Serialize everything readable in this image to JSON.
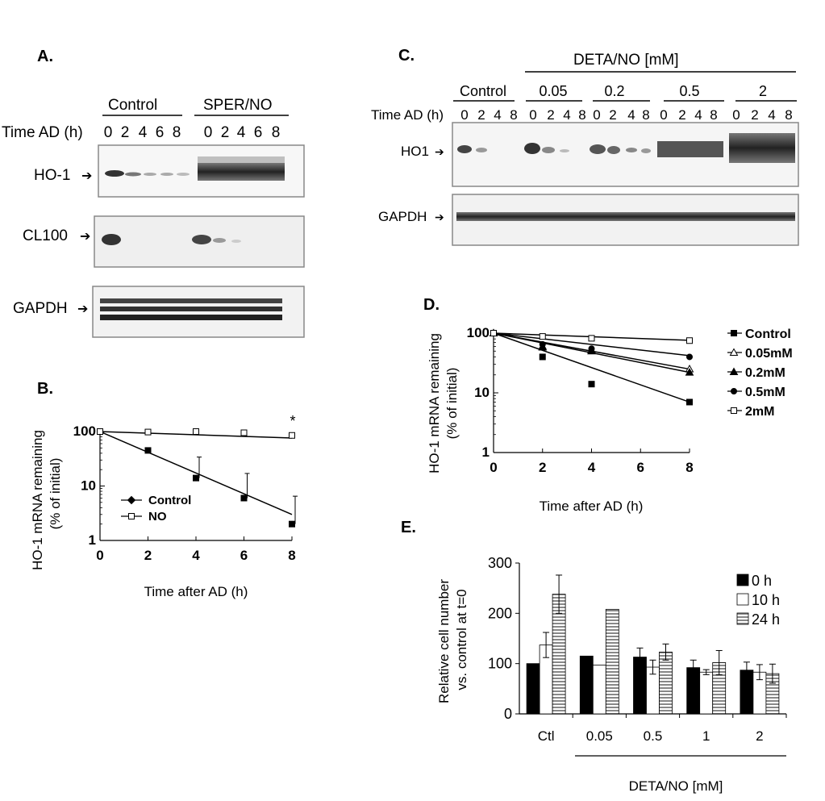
{
  "panelA": {
    "panel_label": "A.",
    "group_labels": [
      "Control",
      "SPER/NO"
    ],
    "time_label": "Time AD (h)",
    "times": [
      "0",
      "2",
      "4",
      "6",
      "8",
      "0",
      "2",
      "4",
      "6",
      "8"
    ],
    "blot_labels": [
      "HO-1",
      "CL100",
      "GAPDH"
    ]
  },
  "panelB": {
    "panel_label": "B.",
    "ylabel": [
      "HO-1 mRNA remaining",
      "(% of initial)"
    ],
    "xlabel": "Time after AD (h)",
    "star": "*"
  },
  "panelC": {
    "panel_label": "C.",
    "treatment_label": "DETA/NO  [mM]",
    "group_labels": [
      "Control",
      "0.05",
      "0.2",
      "0.5",
      "2"
    ],
    "time_label": "Time AD (h)",
    "times": [
      "0",
      "2",
      "4",
      "8",
      "0",
      "2",
      "4",
      "8",
      "0",
      "2",
      "4",
      "8",
      "0",
      "2",
      "4",
      "8",
      "0",
      "2",
      "4",
      "8"
    ],
    "blot_labels": [
      "HO1",
      "GAPDH"
    ]
  },
  "panelD": {
    "panel_label": "D.",
    "ylabel": [
      "HO-1 mRNA remaining",
      "(% of initial)"
    ],
    "xlabel": "Time after AD (h)"
  },
  "panelE": {
    "panel_label": "E.",
    "ylabel": [
      "Relative cell number",
      "vs. control at t=0"
    ],
    "xlabel": "DETA/NO [mM]"
  },
  "chart_data": [
    {
      "id": "B",
      "type": "scatter",
      "x_ticks": [
        0,
        2,
        4,
        6,
        8
      ],
      "y_ticks": [
        1,
        10,
        100
      ],
      "y_scale": "log",
      "xlim": [
        0,
        8
      ],
      "ylim": [
        1,
        100
      ],
      "xlabel": "Time after AD (h)",
      "ylabel": "HO-1 mRNA remaining (% of initial)",
      "legend": "lower-left",
      "series": [
        {
          "name": "Control",
          "marker": "filled-square",
          "x": [
            0,
            2,
            4,
            6,
            8
          ],
          "y": [
            100,
            45,
            14,
            6,
            2
          ],
          "err_up": [
            0,
            0,
            20,
            11,
            4.5
          ],
          "fit": [
            [
              0,
              100
            ],
            [
              8,
              3
            ]
          ]
        },
        {
          "name": "NO",
          "marker": "open-square",
          "x": [
            0,
            2,
            4,
            6,
            8
          ],
          "y": [
            100,
            98,
            100,
            95,
            85
          ],
          "err_up": [
            0,
            0,
            0,
            0,
            0
          ],
          "fit": [
            [
              0,
              100
            ],
            [
              8,
              76
            ]
          ]
        }
      ]
    },
    {
      "id": "D",
      "type": "scatter",
      "x_ticks": [
        0,
        2,
        4,
        6,
        8
      ],
      "y_ticks": [
        1,
        10,
        100
      ],
      "y_scale": "log",
      "xlim": [
        0,
        8
      ],
      "ylim": [
        1,
        100
      ],
      "xlabel": "Time after AD (h)",
      "ylabel": "HO-1 mRNA remaining (% of initial)",
      "legend": "right",
      "series": [
        {
          "name": "Control",
          "marker": "filled-square",
          "x": [
            0,
            2,
            4,
            8
          ],
          "y": [
            100,
            40,
            14,
            7
          ],
          "fit": [
            [
              0,
              100
            ],
            [
              8,
              7
            ]
          ]
        },
        {
          "name": "0.05mM",
          "marker": "open-triangle",
          "x": [
            0,
            2,
            4,
            8
          ],
          "y": [
            100,
            60,
            52,
            25
          ],
          "fit": [
            [
              0,
              100
            ],
            [
              8,
              25
            ]
          ]
        },
        {
          "name": "0.2mM",
          "marker": "filled-triangle",
          "x": [
            0,
            2,
            4,
            8
          ],
          "y": [
            100,
            58,
            50,
            22
          ],
          "fit": [
            [
              0,
              100
            ],
            [
              8,
              22
            ]
          ]
        },
        {
          "name": "0.5mM",
          "marker": "filled-circle",
          "x": [
            0,
            2,
            4,
            8
          ],
          "y": [
            100,
            65,
            55,
            40
          ],
          "fit": [
            [
              0,
              100
            ],
            [
              8,
              42
            ]
          ]
        },
        {
          "name": "2mM",
          "marker": "open-square",
          "x": [
            0,
            2,
            4,
            8
          ],
          "y": [
            100,
            88,
            82,
            75
          ],
          "fit": [
            [
              0,
              100
            ],
            [
              8,
              76
            ]
          ]
        }
      ]
    },
    {
      "id": "E",
      "type": "bar",
      "categories": [
        "Ctl",
        "0.05",
        "0.5",
        "1",
        "2"
      ],
      "ylim": [
        0,
        300
      ],
      "y_ticks": [
        0,
        100,
        200,
        300
      ],
      "xlabel": "DETA/NO [mM]",
      "ylabel": "Relative cell number vs. control at t=0",
      "legend": "top-right",
      "series": [
        {
          "name": "0 h",
          "fill": "#000000",
          "values": [
            100,
            115,
            113,
            92,
            87
          ],
          "err": [
            0,
            0,
            18,
            15,
            16
          ]
        },
        {
          "name": "10 h",
          "fill": "#ffffff",
          "values": [
            137,
            97,
            93,
            83,
            83
          ],
          "err": [
            25,
            0,
            14,
            5,
            15
          ]
        },
        {
          "name": "24 h",
          "fill": "hatched",
          "values": [
            238,
            208,
            123,
            102,
            80
          ],
          "err": [
            38,
            0,
            16,
            24,
            19
          ]
        }
      ]
    }
  ]
}
